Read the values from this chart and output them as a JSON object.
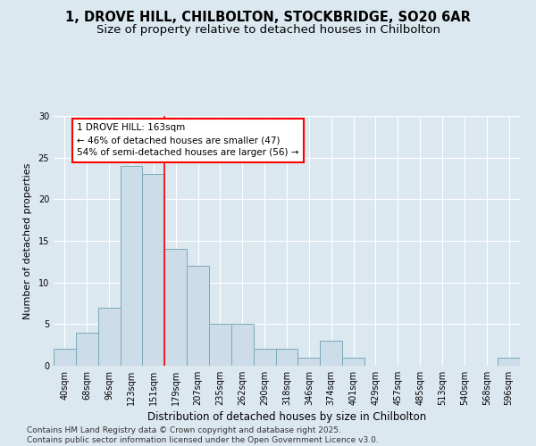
{
  "title_line1": "1, DROVE HILL, CHILBOLTON, STOCKBRIDGE, SO20 6AR",
  "title_line2": "Size of property relative to detached houses in Chilbolton",
  "xlabel": "Distribution of detached houses by size in Chilbolton",
  "ylabel": "Number of detached properties",
  "categories": [
    "40sqm",
    "68sqm",
    "96sqm",
    "123sqm",
    "151sqm",
    "179sqm",
    "207sqm",
    "235sqm",
    "262sqm",
    "290sqm",
    "318sqm",
    "346sqm",
    "374sqm",
    "401sqm",
    "429sqm",
    "457sqm",
    "485sqm",
    "513sqm",
    "540sqm",
    "568sqm",
    "596sqm"
  ],
  "values": [
    2,
    4,
    7,
    24,
    23,
    14,
    12,
    5,
    5,
    2,
    2,
    1,
    3,
    1,
    0,
    0,
    0,
    0,
    0,
    0,
    1
  ],
  "bar_color": "#ccdce8",
  "bar_edge_color": "#7aaabb",
  "property_line_x": 4.5,
  "annotation_line1": "1 DROVE HILL: 163sqm",
  "annotation_line2": "← 46% of detached houses are smaller (47)",
  "annotation_line3": "54% of semi-detached houses are larger (56) →",
  "annotation_box_color": "white",
  "annotation_box_edgecolor": "red",
  "vline_color": "red",
  "ylim": [
    0,
    30
  ],
  "yticks": [
    0,
    5,
    10,
    15,
    20,
    25,
    30
  ],
  "background_color": "#dce8f0",
  "grid_color": "white",
  "footer_text": "Contains HM Land Registry data © Crown copyright and database right 2025.\nContains public sector information licensed under the Open Government Licence v3.0.",
  "title_fontsize": 10.5,
  "subtitle_fontsize": 9.5,
  "xlabel_fontsize": 8.5,
  "ylabel_fontsize": 8,
  "tick_fontsize": 7,
  "footer_fontsize": 6.5,
  "annotation_fontsize": 7.5
}
